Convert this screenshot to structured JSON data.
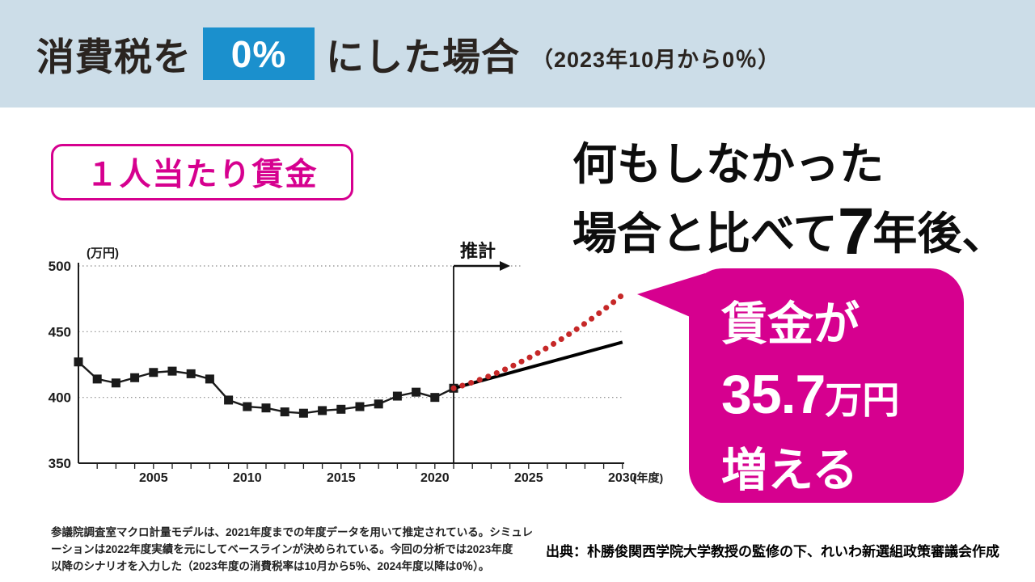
{
  "header": {
    "title_part1": "消費税を",
    "title_highlight": "0%",
    "title_part2": "にした場合",
    "title_note": "（2023年10月から0％）",
    "colors": {
      "bar_bg": "#ccdde8",
      "highlight_bg": "#1b90cd",
      "title_text": "#2a2420"
    }
  },
  "chart_badge": {
    "label": "１人当たり賃金",
    "color": "#d6008f"
  },
  "headline": {
    "line1": "何もしなかった",
    "line2_pre": "場合と比べて",
    "line2_big": "7",
    "line2_post": "年後、"
  },
  "bubble": {
    "line1": "賃金が",
    "value": "35.7",
    "value_unit": "万円",
    "line3": "増える",
    "bg_color": "#d6008f",
    "text_color": "#ffffff"
  },
  "chart_data": {
    "type": "line",
    "title": "１人当たり賃金",
    "ylabel": "(万円)",
    "xlabel_suffix": "(年度)",
    "ylim": [
      350,
      500
    ],
    "yticks": [
      350,
      400,
      450,
      500
    ],
    "xlim": [
      2001,
      2030
    ],
    "xticks_labeled": [
      2005,
      2010,
      2015,
      2020,
      2025,
      2030
    ],
    "grid": "dotted-horizontal",
    "estimate_divider_year": 2021,
    "estimate_label": "推計",
    "series": [
      {
        "name": "actual",
        "style": "line-with-square-markers",
        "color": "#1a1a1a",
        "x": [
          2001,
          2002,
          2003,
          2004,
          2005,
          2006,
          2007,
          2008,
          2009,
          2010,
          2011,
          2012,
          2013,
          2014,
          2015,
          2016,
          2017,
          2018,
          2019,
          2020,
          2021
        ],
        "y": [
          427,
          414,
          411,
          415,
          419,
          420,
          418,
          414,
          398,
          393,
          392,
          389,
          388,
          390,
          391,
          393,
          395,
          401,
          404,
          400,
          407
        ]
      },
      {
        "name": "baseline-projection",
        "style": "solid",
        "color": "#000000",
        "x": [
          2021,
          2030
        ],
        "y": [
          407,
          442
        ]
      },
      {
        "name": "tax0-scenario-projection",
        "style": "dotted-curve",
        "color": "#c62828",
        "x": [
          2021,
          2030
        ],
        "y": [
          407,
          478
        ]
      }
    ]
  },
  "footnote": {
    "lines": [
      "参議院調査室マクロ計量モデルは、2021年度までの年度データを用いて推定されている。シミュレ",
      "ーションは2022年度実績を元にしてベースラインが決められている。今回の分析では2023年度",
      "以降のシナリオを入力した（2023年度の消費税率は10月から5％、2024年度以降は0％）。"
    ]
  },
  "source": "出典：朴勝俊関西学院大学教授の監修の下、れいわ新選組政策審議会作成"
}
